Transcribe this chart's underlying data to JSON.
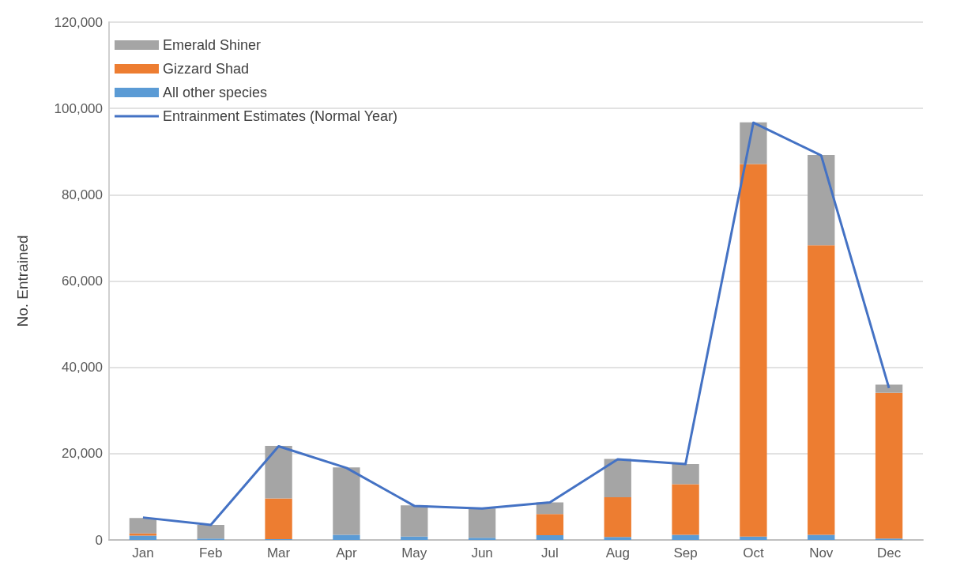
{
  "chart_data": {
    "type": "bar",
    "stacked": true,
    "ylabel": "No. Entrained",
    "categories": [
      "Jan",
      "Feb",
      "Mar",
      "Apr",
      "May",
      "Jun",
      "Jul",
      "Aug",
      "Sep",
      "Oct",
      "Nov",
      "Dec"
    ],
    "series": [
      {
        "name": "All other species",
        "color": "#5b9bd5",
        "values": [
          1000,
          300,
          200,
          1200,
          800,
          500,
          1100,
          700,
          1200,
          800,
          1200,
          300
        ]
      },
      {
        "name": "Gizzard Shad",
        "color": "#ed7d31",
        "values": [
          500,
          0,
          9400,
          0,
          0,
          0,
          4900,
          9200,
          11700,
          86300,
          67100,
          33800
        ]
      },
      {
        "name": "Emerald Shiner",
        "color": "#a5a5a5",
        "values": [
          3600,
          3200,
          12200,
          15600,
          7200,
          6800,
          2700,
          8900,
          4700,
          9700,
          20900,
          1900
        ]
      },
      {
        "name": "Entrainment Estimates (Normal Year)",
        "type": "line",
        "color": "#4472c4",
        "values": [
          5200,
          3500,
          21700,
          16700,
          7900,
          7300,
          8700,
          18700,
          17600,
          96700,
          89100,
          35200
        ]
      }
    ],
    "ylim": [
      0,
      120000
    ],
    "yticks": [
      0,
      {
        "value": 20000,
        "label": "20,000"
      },
      {
        "value": 40000,
        "label": "40,000"
      },
      {
        "value": 60000,
        "label": "60,000"
      },
      {
        "value": 80000,
        "label": "80,000"
      },
      {
        "value": 100000,
        "label": "100,000"
      },
      {
        "value": 120000,
        "label": "120,000"
      }
    ],
    "grid": "y",
    "legend": "top left",
    "marker": "none"
  }
}
